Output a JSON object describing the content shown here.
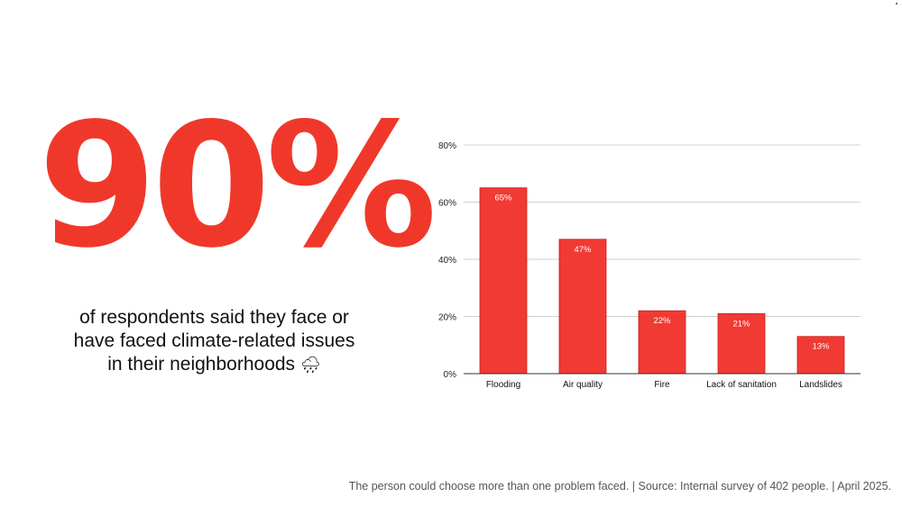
{
  "headline": {
    "value": "90%",
    "caption_lines": [
      "of respondents said they face or",
      "have faced climate-related issues",
      "in their neighborhoods"
    ],
    "emoji": "🌧"
  },
  "colors": {
    "accent": "#f0382a",
    "bar": "#f13a33",
    "bar_edge": "#c8201c",
    "axis": "#333333",
    "grid": "#d0d0d0"
  },
  "chart_data": {
    "type": "bar",
    "title": "",
    "xlabel": "",
    "ylabel": "",
    "categories": [
      "Flooding",
      "Air quality",
      "Fire",
      "Lack of sanitation",
      "Landslides"
    ],
    "values": [
      65,
      47,
      22,
      21,
      13
    ],
    "data_labels": [
      "65%",
      "47%",
      "22%",
      "21%",
      "13%"
    ],
    "ylim": [
      0,
      80
    ],
    "yticks": [
      0,
      20,
      40,
      60,
      80
    ],
    "ytick_labels": [
      "0%",
      "20%",
      "40%",
      "60%",
      "80%"
    ],
    "grid": true,
    "legend": "none"
  },
  "footnote": "The person could choose more than one problem faced. | Source: Internal survey of 402 people. | April 2025."
}
